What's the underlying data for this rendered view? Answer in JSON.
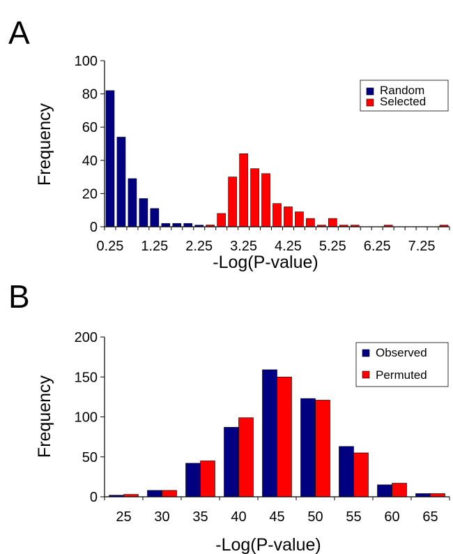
{
  "colors": {
    "blue": "#000080",
    "red": "#ff0000",
    "axis": "#000000"
  },
  "chart_data": [
    {
      "panel_label": "A",
      "type": "bar",
      "xlabel": "-Log(P-value)",
      "ylabel": "Frequency",
      "ylim": [
        0,
        100
      ],
      "yticks": [
        0,
        20,
        40,
        60,
        80,
        100
      ],
      "xtick_labels": [
        "0.25",
        "1.25",
        "2.25",
        "3.25",
        "4.25",
        "5.25",
        "6.25",
        "7.25"
      ],
      "categories": [
        "0.25",
        "0.5",
        "0.75",
        "1",
        "1.25",
        "1.5",
        "1.75",
        "2",
        "2.25",
        "2.5",
        "2.75",
        "3",
        "3.25",
        "3.5",
        "3.75",
        "4",
        "4.25",
        "4.5",
        "4.75",
        "5",
        "5.25",
        "5.5",
        "5.75",
        "6",
        "6.25",
        "6.5",
        "6.75",
        "7",
        "7.25",
        "7.5",
        "7.75"
      ],
      "legend_position": "top-right",
      "series": [
        {
          "name": "Random",
          "color": "#000080",
          "values": [
            82,
            54,
            29,
            17,
            11,
            2,
            2,
            2,
            1,
            1,
            0,
            0,
            0,
            0,
            0,
            0,
            0,
            0,
            0,
            0,
            0,
            0,
            0,
            0,
            0,
            0,
            0,
            0,
            0,
            0,
            0
          ]
        },
        {
          "name": "Selected",
          "color": "#ff0000",
          "values": [
            0,
            0,
            0,
            0,
            0,
            0,
            0,
            0,
            0,
            1,
            8,
            30,
            44,
            35,
            32,
            14,
            12,
            9,
            5,
            1,
            5,
            1,
            1,
            0,
            0,
            1,
            0,
            0,
            0,
            0,
            1
          ]
        }
      ]
    },
    {
      "panel_label": "B",
      "type": "bar",
      "xlabel": "-Log(P-value)",
      "ylabel": "Frequency",
      "ylim": [
        0,
        200
      ],
      "yticks": [
        0,
        50,
        100,
        150,
        200
      ],
      "categories": [
        "25",
        "30",
        "35",
        "40",
        "45",
        "50",
        "55",
        "60",
        "65"
      ],
      "legend_position": "top-right",
      "series": [
        {
          "name": "Observed",
          "color": "#000080",
          "values": [
            2,
            8,
            42,
            87,
            159,
            123,
            63,
            15,
            4
          ]
        },
        {
          "name": "Permuted",
          "color": "#ff0000",
          "values": [
            3,
            8,
            45,
            99,
            150,
            121,
            55,
            17,
            4
          ]
        }
      ]
    }
  ]
}
